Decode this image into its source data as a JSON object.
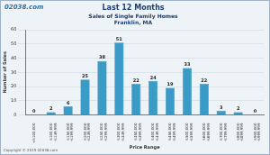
{
  "chart_data": {
    "type": "bar",
    "title": "Last 12 Months",
    "subtitle": [
      "Sales of Single Family Homes",
      "Franklin, MA"
    ],
    "annotations": [
      "02038.com",
      "Copyright © 2015 02038.com"
    ],
    "x_label": "Price Range",
    "y_label": "Number of Sales",
    "categories": [
      "<$100,000",
      "$100,000-$149,999",
      "$150,000-$199,999",
      "$200,000-$249,999",
      "$250,000-$299,999",
      "$300,000-$349,999",
      "$350,000-$399,999",
      "$400,000-$449,999",
      "$450,000-$499,999",
      "$500,000-$599,999",
      "$600,000-$699,999",
      "$700,000-$799,999",
      "$800,000-$899,999",
      "$900,000-$999,999"
    ],
    "values": [
      0,
      2,
      6,
      25,
      38,
      51,
      22,
      24,
      19,
      33,
      22,
      3,
      2,
      0
    ],
    "color": "#3a9cc6",
    "ylim": [
      0,
      60
    ],
    "yticks": [
      0,
      10,
      20,
      30,
      40,
      50,
      60
    ],
    "grid": true,
    "data_labels": true
  }
}
